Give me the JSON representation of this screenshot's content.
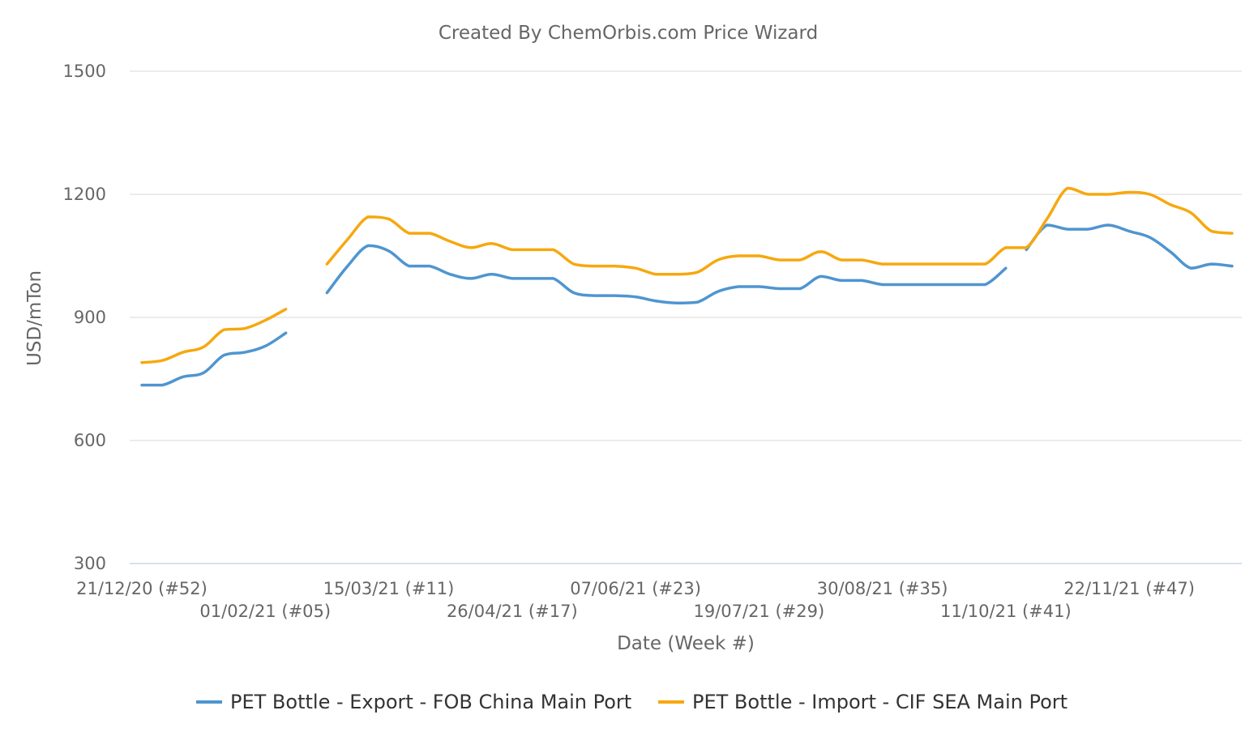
{
  "chart_data": {
    "type": "line",
    "title": "Created By ChemOrbis.com Price Wizard",
    "xlabel": "Date (Week #)",
    "ylabel": "USD/mTon",
    "ylim": [
      300,
      1500
    ],
    "yticks": [
      300,
      600,
      900,
      1200,
      1500
    ],
    "x_start_week_index": 0,
    "x_end_week_index": 53,
    "xtick_labels": [
      {
        "week_index": 0,
        "label": "21/12/20 (#52)",
        "row": 1
      },
      {
        "week_index": 6,
        "label": "01/02/21 (#05)",
        "row": 2
      },
      {
        "week_index": 12,
        "label": "15/03/21 (#11)",
        "row": 1
      },
      {
        "week_index": 18,
        "label": "26/04/21 (#17)",
        "row": 2
      },
      {
        "week_index": 24,
        "label": "07/06/21 (#23)",
        "row": 1
      },
      {
        "week_index": 30,
        "label": "19/07/21 (#29)",
        "row": 2
      },
      {
        "week_index": 36,
        "label": "30/08/21 (#35)",
        "row": 1
      },
      {
        "week_index": 42,
        "label": "11/10/21 (#41)",
        "row": 2
      },
      {
        "week_index": 48,
        "label": "22/11/21 (#47)",
        "row": 1
      }
    ],
    "series": [
      {
        "name": "PET Bottle - Export - FOB China Main Port",
        "color": "#4f95d0",
        "segments": [
          [
            [
              0,
              735
            ],
            [
              1,
              735
            ],
            [
              2,
              755
            ],
            [
              3,
              765
            ],
            [
              4,
              808
            ],
            [
              5,
              815
            ],
            [
              6,
              830
            ],
            [
              7,
              862
            ]
          ],
          [
            [
              9,
              960
            ],
            [
              10,
              1025
            ],
            [
              11,
              1075
            ],
            [
              12,
              1062
            ],
            [
              13,
              1025
            ],
            [
              14,
              1025
            ],
            [
              15,
              1005
            ],
            [
              16,
              995
            ],
            [
              17,
              1005
            ],
            [
              18,
              995
            ],
            [
              19,
              995
            ],
            [
              20,
              995
            ],
            [
              21,
              960
            ],
            [
              22,
              953
            ],
            [
              23,
              953
            ],
            [
              24,
              950
            ],
            [
              25,
              940
            ],
            [
              26,
              935
            ],
            [
              27,
              937
            ],
            [
              28,
              963
            ],
            [
              29,
              975
            ],
            [
              30,
              975
            ],
            [
              31,
              970
            ],
            [
              32,
              970
            ],
            [
              33,
              1000
            ],
            [
              34,
              990
            ],
            [
              35,
              990
            ],
            [
              36,
              980
            ],
            [
              37,
              980
            ],
            [
              38,
              980
            ],
            [
              39,
              980
            ],
            [
              40,
              980
            ],
            [
              41,
              980
            ],
            [
              42,
              1020
            ]
          ],
          [
            [
              43,
              1065
            ],
            [
              44,
              1125
            ],
            [
              45,
              1115
            ],
            [
              46,
              1115
            ],
            [
              47,
              1125
            ],
            [
              48,
              1110
            ],
            [
              49,
              1095
            ],
            [
              50,
              1060
            ],
            [
              51,
              1020
            ],
            [
              52,
              1030
            ],
            [
              53,
              1025
            ]
          ]
        ]
      },
      {
        "name": "PET Bottle - Import - CIF SEA Main Port",
        "color": "#f6a80f",
        "segments": [
          [
            [
              0,
              790
            ],
            [
              1,
              795
            ],
            [
              2,
              815
            ],
            [
              3,
              828
            ],
            [
              4,
              870
            ],
            [
              5,
              873
            ],
            [
              6,
              893
            ],
            [
              7,
              920
            ]
          ],
          [
            [
              9,
              1030
            ],
            [
              10,
              1090
            ],
            [
              11,
              1145
            ],
            [
              12,
              1140
            ],
            [
              13,
              1105
            ],
            [
              14,
              1105
            ],
            [
              15,
              1085
            ],
            [
              16,
              1070
            ],
            [
              17,
              1080
            ],
            [
              18,
              1065
            ],
            [
              19,
              1065
            ],
            [
              20,
              1065
            ],
            [
              21,
              1030
            ],
            [
              22,
              1025
            ],
            [
              23,
              1025
            ],
            [
              24,
              1020
            ],
            [
              25,
              1005
            ],
            [
              26,
              1005
            ],
            [
              27,
              1010
            ],
            [
              28,
              1040
            ],
            [
              29,
              1050
            ],
            [
              30,
              1050
            ],
            [
              31,
              1040
            ],
            [
              32,
              1040
            ],
            [
              33,
              1060
            ],
            [
              34,
              1040
            ],
            [
              35,
              1040
            ],
            [
              36,
              1030
            ],
            [
              37,
              1030
            ],
            [
              38,
              1030
            ],
            [
              39,
              1030
            ],
            [
              40,
              1030
            ],
            [
              41,
              1030
            ],
            [
              42,
              1070
            ],
            [
              43,
              1070
            ],
            [
              44,
              1140
            ],
            [
              45,
              1215
            ],
            [
              46,
              1200
            ],
            [
              47,
              1200
            ],
            [
              48,
              1205
            ],
            [
              49,
              1200
            ],
            [
              50,
              1175
            ],
            [
              51,
              1155
            ],
            [
              52,
              1110
            ],
            [
              53,
              1105
            ]
          ]
        ]
      }
    ]
  }
}
